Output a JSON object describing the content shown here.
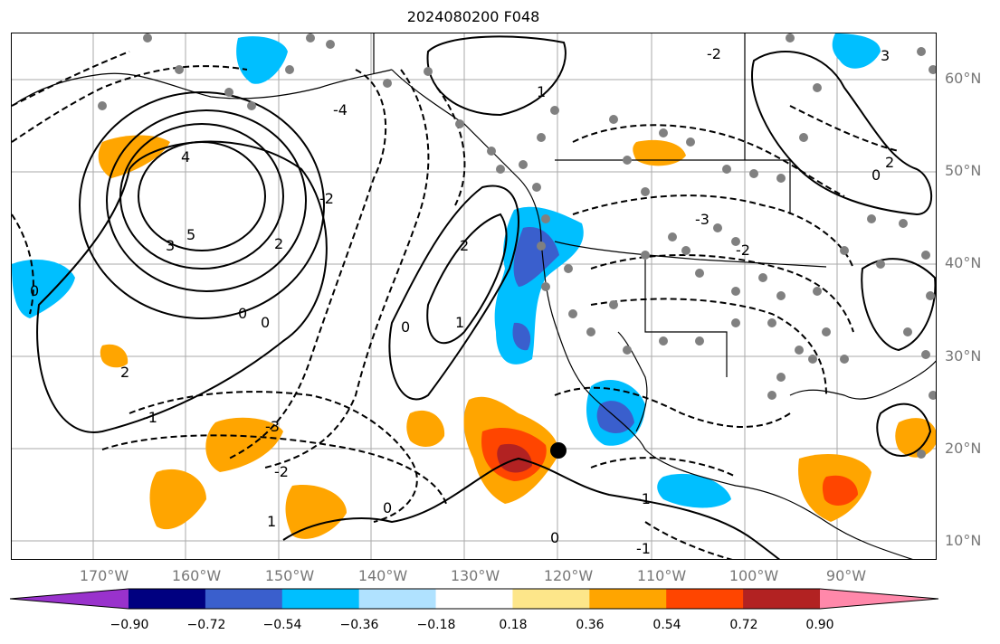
{
  "title": "2024080200 F048",
  "lat_labels": [
    "60°N",
    "50°N",
    "40°N",
    "30°N",
    "20°N",
    "10°N"
  ],
  "lon_labels": [
    "170°W",
    "160°W",
    "150°W",
    "140°W",
    "130°W",
    "120°W",
    "110°W",
    "100°W",
    "90°W"
  ],
  "colorbar": {
    "ticks": [
      "−0.90",
      "−0.72",
      "−0.54",
      "−0.36",
      "−0.18",
      "0.18",
      "0.36",
      "0.54",
      "0.72",
      "0.90"
    ],
    "colors": [
      "#9932cc",
      "#000080",
      "#3a5fcd",
      "#00bfff",
      "#b0e2ff",
      "#ffffff",
      "#fde68a",
      "#ffa500",
      "#ff4500",
      "#b22222",
      "#ff88aa"
    ]
  },
  "contour_labels": [
    "4",
    "5",
    "3",
    "2",
    "1",
    "0",
    "-1",
    "-2",
    "-3",
    "-4"
  ],
  "colors": {
    "shade_orange": "#ffa500",
    "shade_red": "#ff4500",
    "shade_darkred": "#b22222",
    "shade_blue": "#00bfff",
    "shade_medblue": "#3a5fcd",
    "station_dot": "#808080"
  }
}
